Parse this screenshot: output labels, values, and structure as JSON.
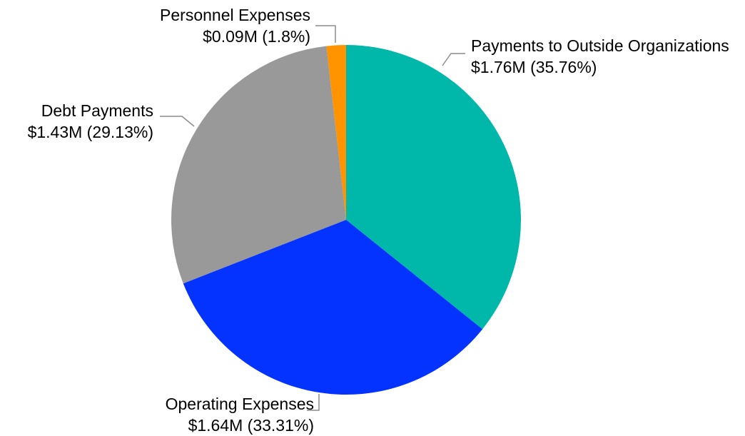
{
  "chart_data": {
    "type": "pie",
    "categories": [
      "Payments to Outside Organizations",
      "Operating Expenses",
      "Debt Payments",
      "Personnel Expenses"
    ],
    "values": [
      35.76,
      33.31,
      29.13,
      1.8
    ],
    "value_labels": [
      "$1.76M (35.76%)",
      "$1.64M (33.31%)",
      "$1.43M (29.13%)",
      "$0.09M (1.8%)"
    ],
    "colors": [
      "#00b8aa",
      "#0433ff",
      "#999999",
      "#ff9300"
    ]
  }
}
